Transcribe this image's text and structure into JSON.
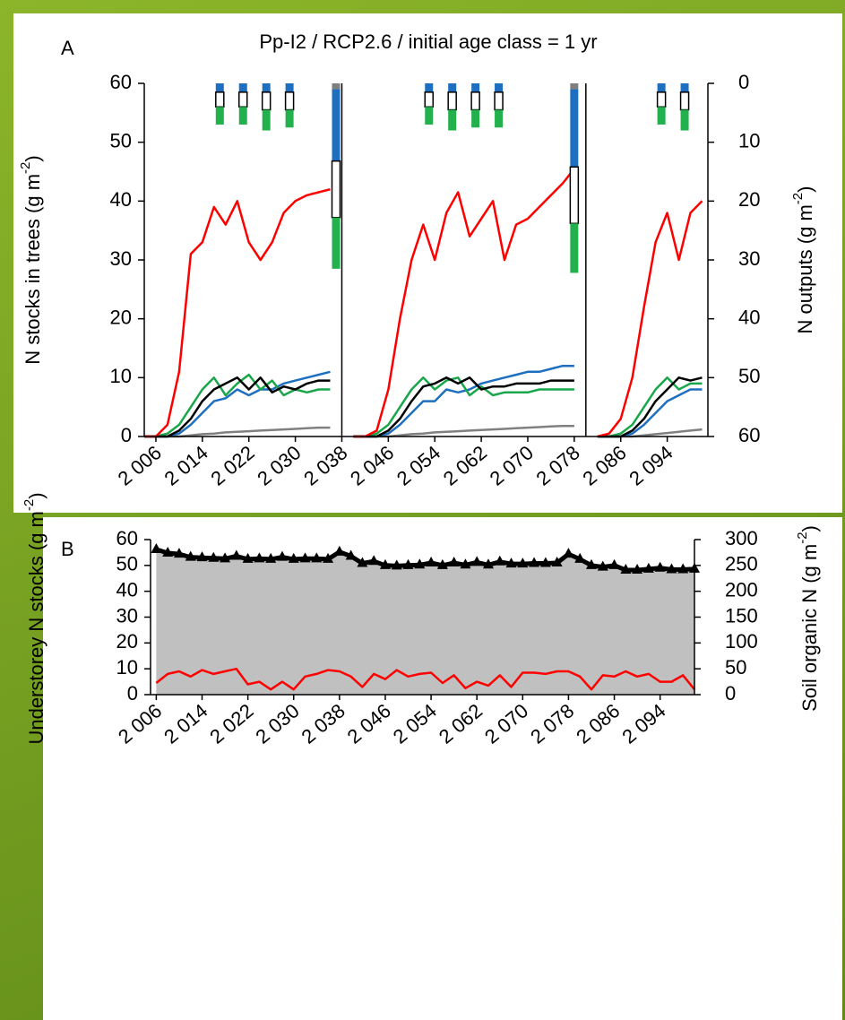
{
  "chart_data": [
    {
      "type": "line",
      "panel": "A",
      "title": "Pp-I2 / RCP2.6 / initial age class = 1 yr",
      "ylabel": [
        "N stocks in trees (g m",
        "-2",
        ")"
      ],
      "y2label": [
        "N outputs (g m",
        "-2",
        ")"
      ],
      "xlim": [
        2004,
        2101
      ],
      "ylim": [
        0,
        60
      ],
      "y2lim": [
        60,
        0
      ],
      "xticks": [
        {
          "value": 2006,
          "label": "2 006"
        },
        {
          "value": 2014,
          "label": "2 014"
        },
        {
          "value": 2022,
          "label": "2 022"
        },
        {
          "value": 2030,
          "label": "2 030"
        },
        {
          "value": 2038,
          "label": "2 038"
        },
        {
          "value": 2046,
          "label": "2 046"
        },
        {
          "value": 2054,
          "label": "2 054"
        },
        {
          "value": 2062,
          "label": "2 062"
        },
        {
          "value": 2070,
          "label": "2 070"
        },
        {
          "value": 2078,
          "label": "2 078"
        },
        {
          "value": 2086,
          "label": "2 086"
        },
        {
          "value": 2094,
          "label": "2 094"
        }
      ],
      "yticks": [
        0,
        10,
        20,
        30,
        40,
        50,
        60
      ],
      "y2ticks": [
        0,
        10,
        20,
        30,
        40,
        50,
        60
      ],
      "x": [
        2004,
        2006,
        2008,
        2010,
        2012,
        2014,
        2016,
        2018,
        2020,
        2022,
        2024,
        2026,
        2028,
        2030,
        2032,
        2034,
        2036,
        2038,
        2040,
        2042,
        2044,
        2046,
        2048,
        2050,
        2052,
        2054,
        2056,
        2058,
        2060,
        2062,
        2064,
        2066,
        2068,
        2070,
        2072,
        2074,
        2076,
        2078,
        2080,
        2082,
        2084,
        2086,
        2088,
        2090,
        2092,
        2094,
        2096,
        2098,
        2100
      ],
      "series": [
        {
          "color": "#808080",
          "values": [
            0,
            0,
            0,
            0,
            0.2,
            0.4,
            0.5,
            0.7,
            0.8,
            0.9,
            1,
            1.1,
            1.2,
            1.3,
            1.4,
            1.5,
            1.5,
            null,
            0,
            0,
            0,
            0,
            0.2,
            0.4,
            0.5,
            0.7,
            0.8,
            0.9,
            1,
            1.1,
            1.2,
            1.3,
            1.4,
            1.5,
            1.6,
            1.7,
            1.8,
            1.8,
            null,
            0,
            0,
            0,
            0,
            0.2,
            0.4,
            0.6,
            0.8,
            1,
            1.2
          ]
        },
        {
          "color": "#1f6fc0",
          "values": [
            0,
            0,
            0,
            0.5,
            2,
            4,
            6,
            6.5,
            8,
            7,
            8,
            8,
            9,
            9.5,
            10,
            10.5,
            11,
            null,
            0,
            0,
            0,
            0.5,
            2,
            4,
            6,
            6,
            8,
            7.5,
            8,
            9,
            9.5,
            10,
            10.5,
            11,
            11,
            11.5,
            12,
            12,
            null,
            0,
            0,
            0,
            0.5,
            2,
            4,
            6,
            7,
            8,
            8
          ]
        },
        {
          "color": "#1aa64a",
          "values": [
            0,
            0,
            0.5,
            2,
            5,
            8,
            10,
            7,
            9,
            10.5,
            8,
            9.5,
            7,
            8,
            7.5,
            8,
            8,
            null,
            0,
            0,
            0.5,
            2,
            5,
            8,
            10,
            8,
            9.5,
            10,
            7,
            8.5,
            7,
            7.5,
            7.5,
            7.5,
            8,
            8,
            8,
            8,
            null,
            0,
            0,
            0.5,
            2,
            5,
            8,
            10,
            8,
            9,
            9
          ]
        },
        {
          "color": "#000000",
          "values": [
            0,
            0,
            0,
            1,
            3,
            6,
            8,
            9,
            10,
            8,
            10,
            7.5,
            8.5,
            8,
            9,
            9.5,
            9.5,
            null,
            0,
            0,
            0,
            1,
            3,
            6,
            8.5,
            9,
            10,
            9,
            10,
            8,
            8.5,
            8.5,
            9,
            9,
            9,
            9.5,
            9.5,
            9.5,
            null,
            0,
            0,
            0,
            1,
            3,
            6,
            8,
            10,
            9.5,
            10
          ]
        },
        {
          "color": "#ff0000",
          "values": [
            0,
            0,
            2,
            11,
            31,
            33,
            39,
            36,
            40,
            33,
            30,
            33,
            38,
            40,
            41,
            41.5,
            42,
            null,
            0,
            0,
            1,
            8,
            20,
            30,
            36,
            30,
            38,
            41.5,
            34,
            37,
            40,
            30,
            36,
            37,
            39,
            41,
            43,
            45.5,
            null,
            0,
            0.5,
            3,
            10,
            22,
            33,
            38,
            30,
            38,
            40
          ]
        }
      ],
      "bars": {
        "axis": "y2",
        "x": [
          2017,
          2021,
          2025,
          2029,
          2037,
          2053,
          2057,
          2061,
          2065,
          2078,
          2093,
          2097
        ],
        "series": [
          {
            "color": "#7f7f7f",
            "values": [
              0,
              0,
              0,
              0,
              1,
              0,
              0,
              0,
              0,
              1,
              0,
              0
            ]
          },
          {
            "color": "#1f6fc0",
            "values": [
              1.5,
              1.5,
              1.5,
              1.5,
              12.2,
              1.5,
              1.5,
              1.5,
              1.5,
              13.2,
              1.5,
              1.5
            ]
          },
          {
            "color": "#ffffff",
            "values": [
              2.5,
              2.5,
              3,
              3,
              9.6,
              2.5,
              3,
              3,
              3,
              9.6,
              2.5,
              3
            ]
          },
          {
            "color": "#22b14c",
            "values": [
              3,
              3,
              3.5,
              3,
              8.7,
              3,
              3.5,
              3,
              3,
              8.4,
              3,
              3.5
            ]
          }
        ]
      }
    },
    {
      "type": "line",
      "panel": "B",
      "ylabel": [
        "Understorey N stocks (g m",
        "-2",
        ")"
      ],
      "y2label": [
        "Soil organic N (g m",
        "-2",
        ")"
      ],
      "xlim": [
        2005,
        2100
      ],
      "ylim": [
        0,
        60
      ],
      "y2lim": [
        0,
        300
      ],
      "xticks": [
        {
          "value": 2006,
          "label": "2 006"
        },
        {
          "value": 2014,
          "label": "2 014"
        },
        {
          "value": 2022,
          "label": "2 022"
        },
        {
          "value": 2030,
          "label": "2 030"
        },
        {
          "value": 2038,
          "label": "2 038"
        },
        {
          "value": 2046,
          "label": "2 046"
        },
        {
          "value": 2054,
          "label": "2 054"
        },
        {
          "value": 2062,
          "label": "2 062"
        },
        {
          "value": 2070,
          "label": "2 070"
        },
        {
          "value": 2078,
          "label": "2 078"
        },
        {
          "value": 2086,
          "label": "2 086"
        },
        {
          "value": 2094,
          "label": "2 094"
        }
      ],
      "yticks": [
        0,
        10,
        20,
        30,
        40,
        50,
        60
      ],
      "y2ticks": [
        0,
        50,
        100,
        150,
        200,
        250,
        300
      ],
      "x": [
        2006,
        2008,
        2010,
        2012,
        2014,
        2016,
        2018,
        2020,
        2022,
        2024,
        2026,
        2028,
        2030,
        2032,
        2034,
        2036,
        2038,
        2040,
        2042,
        2044,
        2046,
        2048,
        2050,
        2052,
        2054,
        2056,
        2058,
        2060,
        2062,
        2064,
        2066,
        2068,
        2070,
        2072,
        2074,
        2076,
        2078,
        2080,
        2082,
        2084,
        2086,
        2088,
        2090,
        2092,
        2094,
        2096,
        2098,
        2100
      ],
      "series": [
        {
          "style": "area",
          "axis": "y2",
          "color": "#c0c0c0",
          "edge_color": "#000000",
          "marker": "triangle",
          "values": [
            281,
            274,
            272,
            266,
            265,
            264,
            263,
            268,
            262,
            263,
            262,
            266,
            262,
            263,
            263,
            262,
            276,
            268,
            254,
            258,
            250,
            249,
            250,
            251,
            255,
            250,
            255,
            251,
            256,
            251,
            257,
            253,
            253,
            254,
            254,
            255,
            272,
            262,
            250,
            247,
            250,
            241,
            241,
            243,
            245,
            242,
            242,
            243
          ]
        },
        {
          "style": "line",
          "color": "#ff0000",
          "values": [
            4.5,
            8,
            9,
            7,
            9.5,
            8,
            9,
            10,
            4,
            5,
            2,
            5,
            2,
            7,
            8,
            9.5,
            9,
            7,
            3,
            8,
            6,
            9.5,
            7,
            8,
            8.5,
            4.5,
            7.5,
            2.5,
            5,
            3.5,
            7.5,
            3,
            8.5,
            8.5,
            8,
            9,
            9,
            7,
            2,
            7.5,
            7,
            9,
            7,
            8,
            5,
            5,
            7.5,
            2
          ]
        }
      ]
    }
  ]
}
